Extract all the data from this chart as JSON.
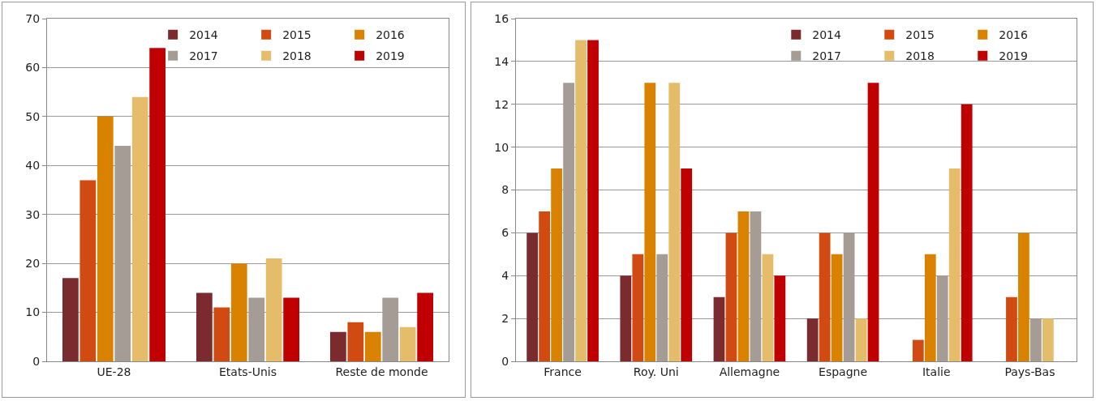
{
  "chart_data": [
    {
      "type": "bar",
      "categories": [
        "UE-28",
        "Etats-Unis",
        "Reste de monde"
      ],
      "ylim": [
        0,
        70
      ],
      "yticks": [
        0,
        10,
        20,
        30,
        40,
        50,
        60,
        70
      ],
      "grid": "y",
      "legend": "top right",
      "series": [
        {
          "name": "2014",
          "color": "#7b2a2e",
          "values": [
            17,
            14,
            6
          ]
        },
        {
          "name": "2015",
          "color": "#d04a12",
          "values": [
            37,
            11,
            8
          ]
        },
        {
          "name": "2016",
          "color": "#d98200",
          "values": [
            50,
            20,
            6
          ]
        },
        {
          "name": "2017",
          "color": "#a59c96",
          "values": [
            44,
            13,
            13
          ]
        },
        {
          "name": "2018",
          "color": "#e5bd6a",
          "values": [
            54,
            21,
            7
          ]
        },
        {
          "name": "2019",
          "color": "#c00000",
          "values": [
            64,
            13,
            14
          ]
        }
      ]
    },
    {
      "type": "bar",
      "categories": [
        "France",
        "Roy. Uni",
        "Allemagne",
        "Espagne",
        "Italie",
        "Pays-Bas"
      ],
      "ylim": [
        0,
        16
      ],
      "yticks": [
        0,
        2,
        4,
        6,
        8,
        10,
        12,
        14,
        16
      ],
      "grid": "y",
      "legend": "top right",
      "series": [
        {
          "name": "2014",
          "color": "#7b2a2e",
          "values": [
            6,
            4,
            3,
            2,
            null,
            null
          ]
        },
        {
          "name": "2015",
          "color": "#d04a12",
          "values": [
            7,
            5,
            6,
            6,
            1,
            3
          ]
        },
        {
          "name": "2016",
          "color": "#d98200",
          "values": [
            9,
            13,
            7,
            5,
            5,
            6
          ]
        },
        {
          "name": "2017",
          "color": "#a59c96",
          "values": [
            13,
            5,
            7,
            6,
            4,
            2
          ]
        },
        {
          "name": "2018",
          "color": "#e5bd6a",
          "values": [
            15,
            13,
            5,
            2,
            9,
            2
          ]
        },
        {
          "name": "2019",
          "color": "#c00000",
          "values": [
            15,
            9,
            4,
            13,
            12,
            null
          ]
        }
      ]
    }
  ]
}
